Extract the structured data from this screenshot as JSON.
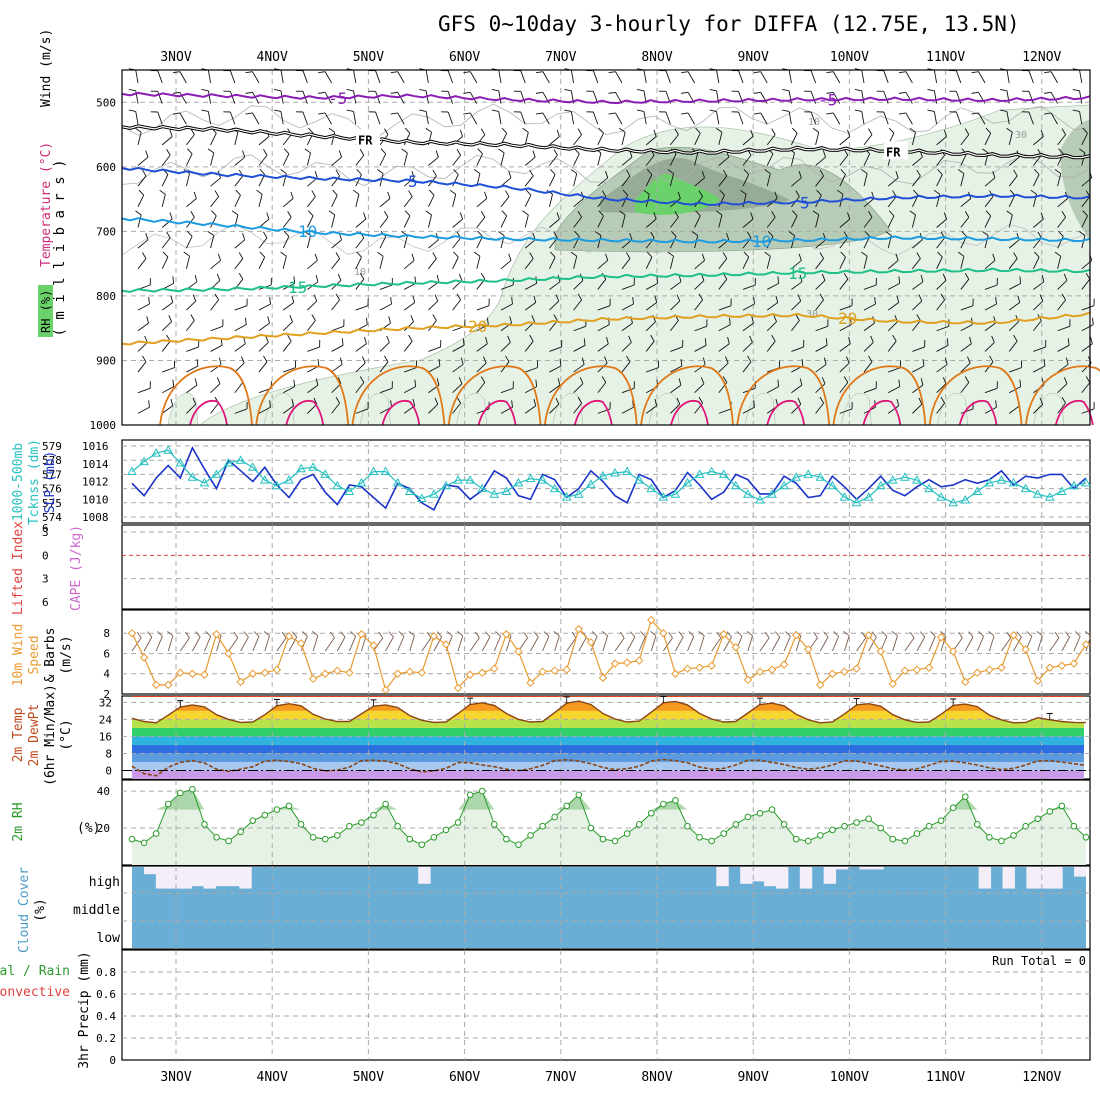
{
  "title": "GFS 0~10day 3-hourly for DIFFA (12.75E, 13.5N)",
  "dates": [
    "3NOV",
    "4NOV",
    "5NOV",
    "6NOV",
    "7NOV",
    "8NOV",
    "9NOV",
    "10NOV",
    "11NOV",
    "12NOV"
  ],
  "colors": {
    "axis": "#000000",
    "grid": "#aaaaaa",
    "wind_barb": "#111111",
    "rh_light": "#e6f2e6",
    "rh_mid": "#b7ccb7",
    "rh_dark": "#8fa48f",
    "rh_high": "#6bd26b",
    "t_m5": "#8a1db5",
    "t_fr": "#000000",
    "t_5": "#1f4fd6",
    "t_10": "#1c9be0",
    "t_15": "#1fbf8a",
    "t_20": "#e0a020",
    "t_25": "#e07818",
    "t_30": "#e0157a",
    "slp": "#1a33c8",
    "thick": "#27c0c0",
    "li_zero": "#e04040",
    "wind10": "#e89a30",
    "temp2": "#8b4513",
    "rh2": "#2b9b2b",
    "rh2_fill": "#e6f2e6",
    "cloud": "#6aaed6",
    "cloud_gap": "#f4eef8"
  },
  "chart_data": [
    {
      "panel": "upper-air",
      "type": "line",
      "ylabel_parts": [
        "Wind (m/s)",
        "Temperature (°C)",
        "RH (%)"
      ],
      "yaxis": "( m i l l i b a r s )",
      "yticks": [
        500,
        600,
        700,
        800,
        900,
        1000
      ],
      "ylim": [
        450,
        1000
      ],
      "rh_labels": [
        "10",
        "30"
      ],
      "isotherms": [
        {
          "name": "-5",
          "label": "-5",
          "p": [
            487,
            490,
            493,
            490,
            496,
            500,
            498,
            496,
            495,
            497,
            493
          ]
        },
        {
          "name": "FR",
          "label": "FR",
          "p": [
            538,
            542,
            552,
            562,
            566,
            574,
            578,
            572,
            575,
            582,
            585
          ]
        },
        {
          "name": "5",
          "label": "5",
          "p": [
            602,
            612,
            618,
            622,
            632,
            650,
            658,
            655,
            648,
            645,
            648
          ]
        },
        {
          "name": "10",
          "label": "10",
          "p": [
            680,
            690,
            702,
            708,
            712,
            714,
            716,
            714,
            710,
            712,
            714
          ]
        },
        {
          "name": "15",
          "label": "15",
          "p": [
            792,
            790,
            785,
            780,
            776,
            770,
            768,
            764,
            762,
            760,
            762
          ]
        },
        {
          "name": "20",
          "label": "20",
          "p": [
            874,
            866,
            858,
            850,
            845,
            836,
            832,
            830,
            840,
            842,
            828
          ]
        }
      ]
    },
    {
      "panel": "slp-thickness",
      "type": "line",
      "ylabel_parts": [
        "1000-500mb",
        "Tcknss (dm)",
        "SLP (mb)"
      ],
      "left_ticks": [
        574,
        575,
        576,
        577,
        578,
        579
      ],
      "right_ticks": [
        1008,
        1010,
        1012,
        1014,
        1016
      ],
      "series": [
        {
          "name": "SLP (mb)",
          "values": [
            1011.8,
            1010.4,
            1012.4,
            1013.8,
            1012.4,
            1015.8,
            1013.4,
            1011.2,
            1014.4,
            1013.2,
            1012.0,
            1013.6,
            1011.6,
            1010.2,
            1012.2,
            1012.8,
            1010.8,
            1009.4,
            1011.6,
            1011.4,
            1010.2,
            1009.0,
            1011.8,
            1011.2,
            1009.6,
            1008.8,
            1011.6,
            1011.4,
            1010.0,
            1011.0,
            1013.2,
            1012.4,
            1010.4,
            1010.0,
            1012.8,
            1012.2,
            1010.2,
            1011.2,
            1013.2,
            1012.0,
            1010.4,
            1009.6,
            1012.8,
            1012.2,
            1010.2,
            1011.0,
            1013.0,
            1011.6,
            1010.0,
            1010.8,
            1012.8,
            1012.2,
            1010.6,
            1010.6,
            1012.6,
            1011.8,
            1010.2,
            1010.4,
            1012.6,
            1011.4,
            1010.0,
            1011.2,
            1012.6,
            1011.0,
            1010.4,
            1011.4,
            1012.2,
            1011.4,
            1011.6,
            1012.2,
            1011.8,
            1012.2,
            1013.2,
            1011.6,
            1012.6,
            1012.4,
            1012.8,
            1012.8,
            1011.2,
            1012.4
          ]
        },
        {
          "name": "Tcknss (dm)",
          "values": [
            577.2,
            577.9,
            578.5,
            578.7,
            577.8,
            576.8,
            576.4,
            577.0,
            577.8,
            578.0,
            577.5,
            576.6,
            576.2,
            576.6,
            577.4,
            577.5,
            577.0,
            576.2,
            575.8,
            576.4,
            577.2,
            577.2,
            576.4,
            575.8,
            575.3,
            575.6,
            576.2,
            576.6,
            576.6,
            576.0,
            575.6,
            575.8,
            576.4,
            576.7,
            576.6,
            576.0,
            575.4,
            575.6,
            576.3,
            576.9,
            577.1,
            577.2,
            576.6,
            576.0,
            575.4,
            575.6,
            576.4,
            577.0,
            577.2,
            577.0,
            576.2,
            575.6,
            575.2,
            575.6,
            576.2,
            576.8,
            577.0,
            576.8,
            576.2,
            575.4,
            575.0,
            575.4,
            576.2,
            576.6,
            576.8,
            576.6,
            576.0,
            575.4,
            575.0,
            575.2,
            575.8,
            576.4,
            576.6,
            576.4,
            576.0,
            575.6,
            575.4,
            575.8,
            576.2,
            576.4
          ]
        }
      ]
    },
    {
      "panel": "cape-li",
      "type": "line",
      "ylabel_parts": [
        "Lifted Index",
        "CAPE (J/kg)"
      ],
      "yticks": [
        -3,
        0,
        3,
        6
      ],
      "series": []
    },
    {
      "panel": "wind10m",
      "type": "line",
      "ylabel_parts": [
        "10m Wind",
        "Speed",
        "& Barbs",
        "(m/s)"
      ],
      "yticks": [
        2,
        4,
        6,
        8
      ],
      "ylim": [
        2,
        9.5
      ],
      "series": [
        {
          "name": "10m Wind Speed",
          "values": [
            8.0,
            5.6,
            2.9,
            2.9,
            4.1,
            4.0,
            3.9,
            7.9,
            6.0,
            3.2,
            4.0,
            4.1,
            4.4,
            7.7,
            7.0,
            3.5,
            4.0,
            4.3,
            4.1,
            7.9,
            6.8,
            2.4,
            4.0,
            4.2,
            4.1,
            7.7,
            6.9,
            2.6,
            3.9,
            4.1,
            4.5,
            7.9,
            6.2,
            3.1,
            4.2,
            4.3,
            4.4,
            8.4,
            7.1,
            3.6,
            5.0,
            5.1,
            5.3,
            9.3,
            8.0,
            4.0,
            4.5,
            4.6,
            4.8,
            7.9,
            6.6,
            3.4,
            4.2,
            4.4,
            4.9,
            7.8,
            6.4,
            2.9,
            4.0,
            4.2,
            4.5,
            7.8,
            6.2,
            3.0,
            4.3,
            4.4,
            4.6,
            7.6,
            6.2,
            3.2,
            4.1,
            4.4,
            4.6,
            7.8,
            6.4,
            3.3,
            4.6,
            4.8,
            5.0,
            6.9
          ]
        }
      ]
    },
    {
      "panel": "temp2m",
      "type": "area",
      "ylabel_parts": [
        "2m Temp",
        "2m DewPt",
        "(6hr Min/Max)",
        "(°C)"
      ],
      "yticks": [
        0,
        8,
        16,
        24,
        32
      ],
      "ylim": [
        -4,
        35
      ],
      "series": [
        {
          "name": "2m Temp",
          "values": [
            24.5,
            23.0,
            22.4,
            26.0,
            29.8,
            30.8,
            29.9,
            26.2,
            24.0,
            22.6,
            22.8,
            26.2,
            30.4,
            31.4,
            30.4,
            26.4,
            24.2,
            23.0,
            23.0,
            26.6,
            30.2,
            30.8,
            29.6,
            25.8,
            23.6,
            22.6,
            22.8,
            26.8,
            31.0,
            31.8,
            30.6,
            26.8,
            24.0,
            22.8,
            23.0,
            27.2,
            31.6,
            32.6,
            31.0,
            26.8,
            24.2,
            22.8,
            23.2,
            27.4,
            31.8,
            32.4,
            30.8,
            26.8,
            24.2,
            22.8,
            23.0,
            27.0,
            31.0,
            31.6,
            30.4,
            26.4,
            23.8,
            22.4,
            22.8,
            26.6,
            30.8,
            31.4,
            30.2,
            26.2,
            23.8,
            22.6,
            22.8,
            26.4,
            30.6,
            31.2,
            30.0,
            26.0,
            23.8,
            22.4,
            22.6,
            24.8,
            23.8,
            23.0,
            22.6,
            22.5
          ]
        },
        {
          "name": "2m DewPt",
          "values": [
            2.0,
            -1.5,
            -2.5,
            1.5,
            3.8,
            4.6,
            3.5,
            0.6,
            -0.4,
            0.6,
            1.8,
            4.4,
            4.8,
            4.2,
            3.2,
            1.0,
            -0.2,
            0.2,
            1.6,
            4.6,
            4.8,
            4.4,
            3.2,
            0.8,
            -0.6,
            -0.2,
            1.0,
            3.8,
            3.6,
            2.6,
            1.8,
            0.6,
            0.0,
            0.8,
            2.4,
            4.6,
            5.0,
            4.4,
            3.2,
            1.4,
            0.4,
            0.8,
            2.0,
            4.4,
            5.2,
            4.6,
            3.6,
            1.6,
            0.6,
            1.0,
            2.6,
            4.8,
            4.8,
            3.8,
            2.8,
            1.4,
            0.6,
            1.2,
            2.6,
            4.6,
            4.4,
            3.4,
            2.2,
            0.8,
            0.2,
            0.8,
            2.4,
            4.2,
            4.4,
            3.6,
            2.6,
            1.2,
            0.4,
            1.0,
            2.6,
            4.4,
            4.6,
            4.0,
            3.2,
            2.4
          ]
        }
      ]
    },
    {
      "panel": "rh2m",
      "type": "area",
      "ylabel_parts": [
        "2m RH",
        "(%)"
      ],
      "yticks": [
        20,
        40
      ],
      "ylim": [
        0,
        46
      ],
      "series": [
        {
          "name": "2m RH",
          "values": [
            14,
            12,
            17,
            33,
            39,
            41,
            22,
            15,
            13,
            18,
            24,
            27,
            30,
            32,
            22,
            15,
            14,
            16,
            21,
            23,
            27,
            33,
            21,
            14,
            11,
            15,
            19,
            23,
            38,
            40,
            22,
            14,
            11,
            16,
            21,
            26,
            32,
            38,
            20,
            14,
            13,
            17,
            22,
            28,
            33,
            35,
            21,
            15,
            13,
            17,
            22,
            26,
            28,
            30,
            22,
            14,
            13,
            16,
            19,
            21,
            23,
            25,
            20,
            14,
            13,
            17,
            21,
            24,
            31,
            37,
            22,
            15,
            13,
            16,
            21,
            25,
            29,
            32,
            21,
            15
          ]
        }
      ]
    },
    {
      "panel": "cloud",
      "type": "heatmap",
      "ylabel_parts": [
        "Cloud Cover",
        "(%)"
      ],
      "levels": [
        "high",
        "middle",
        "low"
      ],
      "high_gap": [
        0,
        0.3,
        0.9,
        0.9,
        0.9,
        0.8,
        0.9,
        0.8,
        0.8,
        0.9,
        0,
        0,
        0,
        0,
        0,
        0,
        0,
        0,
        0,
        0,
        0,
        0,
        0,
        0,
        0.7,
        0,
        0,
        0,
        0,
        0,
        0,
        0,
        0,
        0,
        0,
        0,
        0,
        0,
        0,
        0,
        0,
        0,
        0,
        0,
        0,
        0,
        0,
        0,
        0,
        0.8,
        0,
        0.7,
        0.6,
        0.8,
        0.9,
        0,
        0.9,
        0,
        0.7,
        0.1,
        0,
        0.1,
        0.1,
        0,
        0,
        0,
        0,
        0,
        0,
        0,
        0,
        0.9,
        0,
        0.9,
        0,
        0.9,
        0.9,
        0.9,
        0,
        0.4
      ]
    },
    {
      "panel": "precip",
      "type": "bar",
      "ylabel_parts": [
        "Total / Rain",
        "Convective",
        "3hr Precip (mm)"
      ],
      "yticks": [
        0,
        0.2,
        0.4,
        0.6,
        0.8
      ],
      "ylim": [
        0,
        1
      ],
      "annotation": "Run Total = 0",
      "values": []
    }
  ]
}
